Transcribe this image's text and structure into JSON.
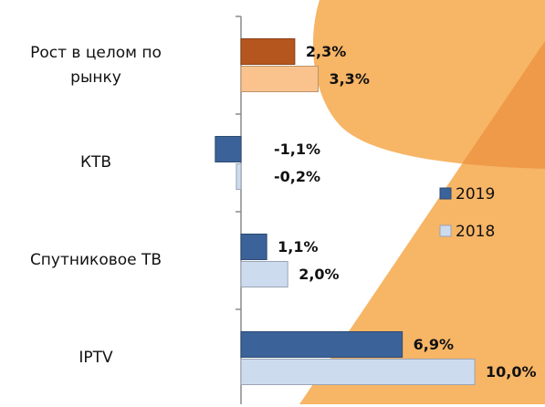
{
  "chart_data": {
    "type": "bar",
    "orientation": "horizontal",
    "categories": [
      "Рост в целом по рынку",
      "КТВ",
      "Спутниковое ТВ",
      "IPTV"
    ],
    "series": [
      {
        "name": "2019",
        "color": "#3b6399",
        "colors": [
          "#b5561f",
          "#3b6399",
          "#3b6399",
          "#3b6399"
        ],
        "values": [
          2.3,
          -1.1,
          1.1,
          6.9
        ],
        "value_labels": [
          "2,3%",
          "-1,1%",
          "1,1%",
          "6,9%"
        ]
      },
      {
        "name": "2018",
        "color": "#cddbef",
        "colors": [
          "#fac38e",
          "#cddbef",
          "#cddbef",
          "#cddbef"
        ],
        "values": [
          3.3,
          -0.2,
          2.0,
          10.0
        ],
        "value_labels": [
          "3,3%",
          "-0,2%",
          "2,0%",
          "10,0%"
        ]
      }
    ],
    "legend": "right"
  }
}
